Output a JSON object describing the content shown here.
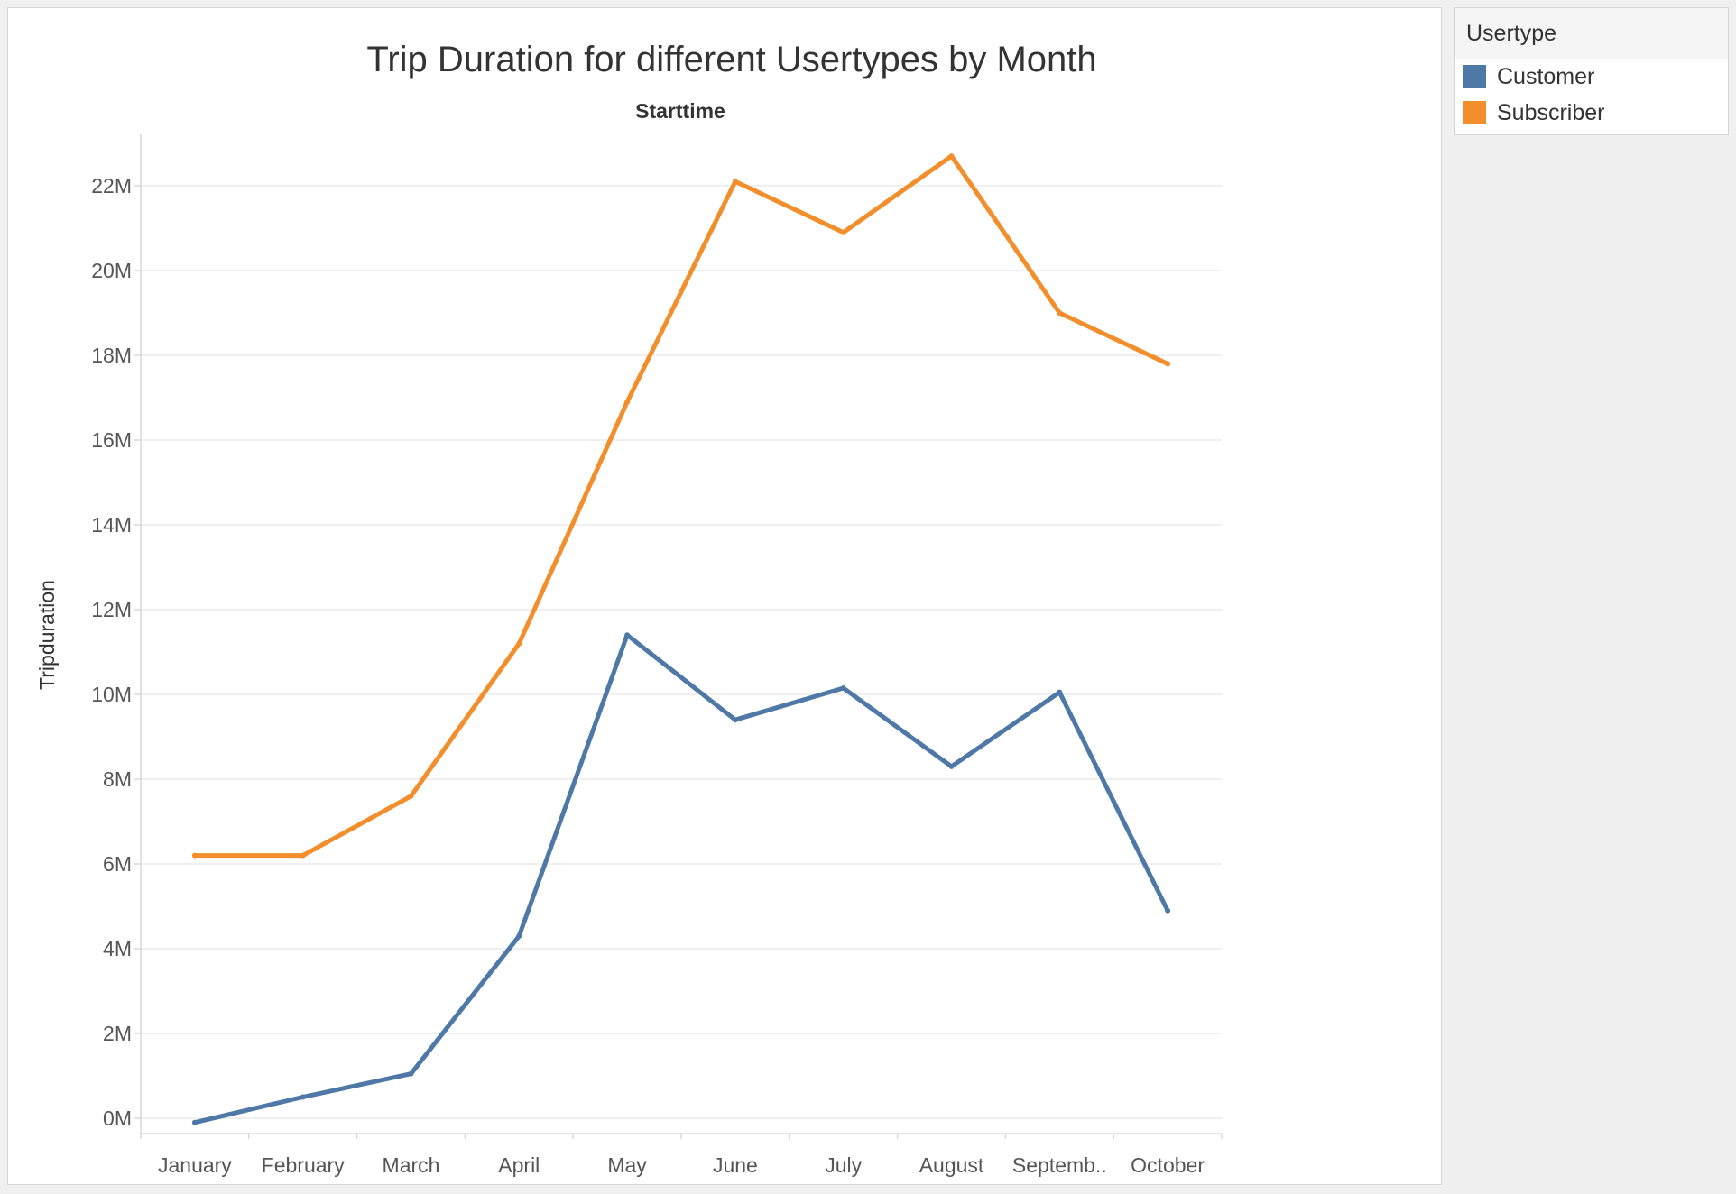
{
  "chart_data": {
    "type": "line",
    "title": "Trip Duration for different Usertypes by Month",
    "xlabel": "Starttime",
    "ylabel": "Tripduration",
    "categories": [
      "January",
      "February",
      "March",
      "April",
      "May",
      "June",
      "July",
      "August",
      "Septemb..",
      "October"
    ],
    "yticks": [
      "0M",
      "2M",
      "4M",
      "6M",
      "8M",
      "10M",
      "12M",
      "14M",
      "16M",
      "18M",
      "20M",
      "22M"
    ],
    "ylim": [
      0,
      23000000
    ],
    "grid": true,
    "legend_position": "right",
    "series": [
      {
        "name": "Customer",
        "color": "#4e79a7",
        "values": [
          -100000,
          500000,
          1050000,
          4300000,
          11400000,
          9400000,
          10150000,
          8300000,
          10050000,
          4900000
        ]
      },
      {
        "name": "Subscriber",
        "color": "#f28e2b",
        "values": [
          6200000,
          6200000,
          7600000,
          11200000,
          16900000,
          22100000,
          20900000,
          22700000,
          19000000,
          17800000
        ]
      }
    ]
  },
  "legend": {
    "title": "Usertype",
    "items": [
      {
        "label": "Customer",
        "color": "#4e79a7"
      },
      {
        "label": "Subscriber",
        "color": "#f28e2b"
      }
    ]
  }
}
